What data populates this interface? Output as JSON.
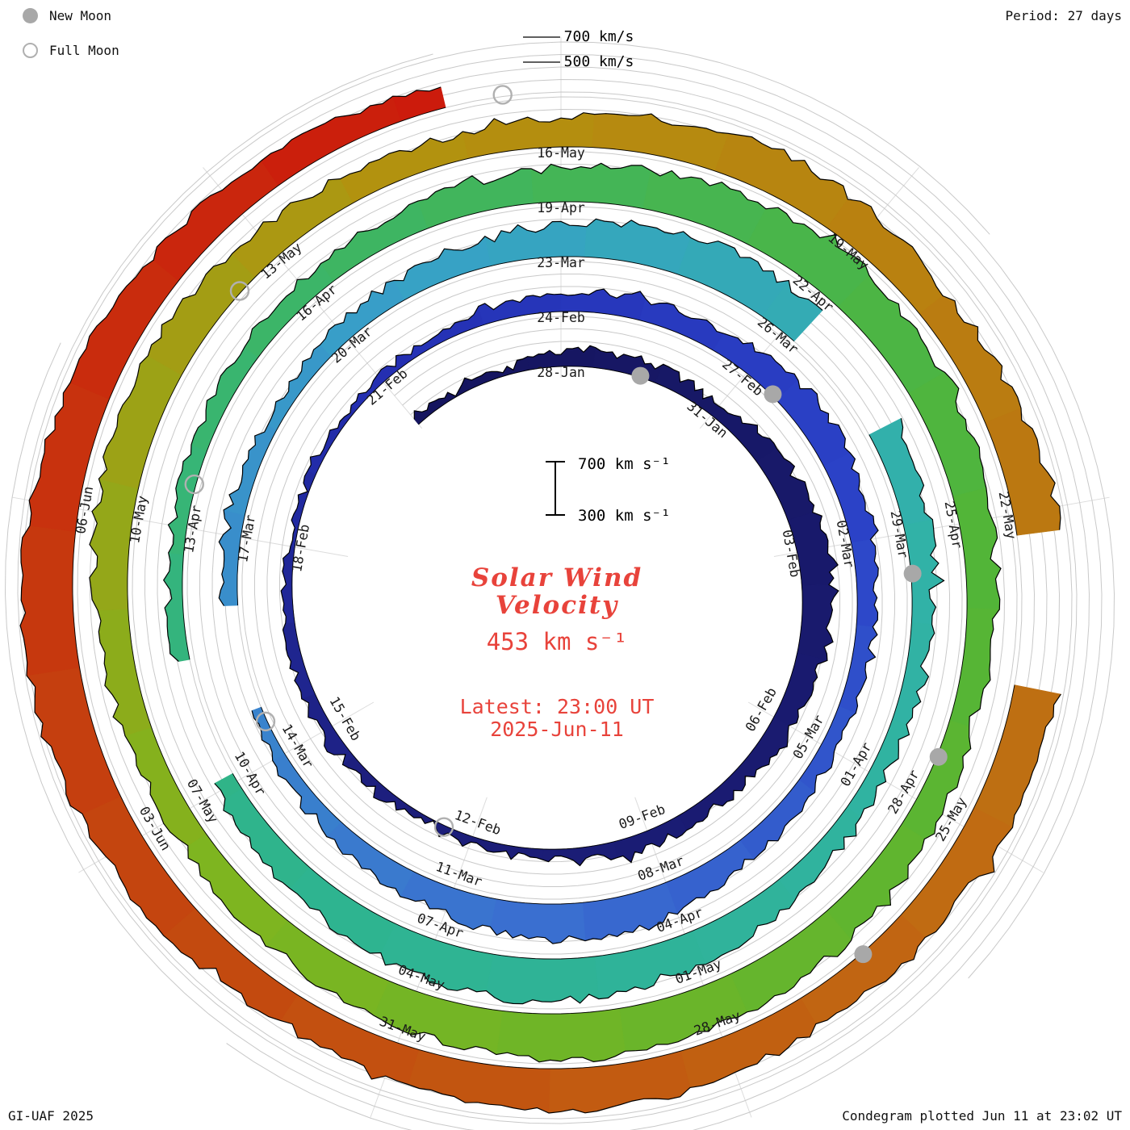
{
  "header": {
    "period_label": "Period: 27 days"
  },
  "legend": {
    "new_moon": "New Moon",
    "full_moon": "Full Moon"
  },
  "footer": {
    "credit": "GI-UAF 2025",
    "plotted": "Condegram plotted Jun 11 at 23:02 UT"
  },
  "center": {
    "title_line1": "Solar Wind",
    "title_line2": "Velocity",
    "current_value": "453 km s⁻¹",
    "latest_line1": "Latest: 23:00 UT",
    "latest_line2": "2025-Jun-11",
    "scale_top": "700 km s⁻¹",
    "scale_bottom": "300 km s⁻¹",
    "accent_color": "#e8433b"
  },
  "outer_scale": {
    "label_700": "700 km/s",
    "label_500": "500 km/s"
  },
  "chart_data": {
    "type": "area",
    "subtype": "spiral_condegram",
    "title": "Solar Wind Velocity",
    "period_days": 27,
    "direction": "clockwise",
    "start_angle": "top",
    "radial_axis": {
      "min": 300,
      "max": 700,
      "units": "km/s",
      "gridlines_km_s": [
        300,
        400,
        500,
        600,
        700
      ]
    },
    "latest": {
      "value_km_s": 453,
      "time_ut": "23:00",
      "date": "2025-Jun-11"
    },
    "date_labels": [
      {
        "day": 0,
        "label": "28-Jan"
      },
      {
        "day": 3,
        "label": "31-Jan"
      },
      {
        "day": 6,
        "label": "03-Feb"
      },
      {
        "day": 9,
        "label": "06-Feb"
      },
      {
        "day": 12,
        "label": "09-Feb"
      },
      {
        "day": 15,
        "label": "12-Feb"
      },
      {
        "day": 18,
        "label": "15-Feb"
      },
      {
        "day": 21,
        "label": "18-Feb"
      },
      {
        "day": 24,
        "label": "21-Feb"
      },
      {
        "day": 27,
        "label": "24-Feb"
      },
      {
        "day": 30,
        "label": "27-Feb"
      },
      {
        "day": 33,
        "label": "02-Mar"
      },
      {
        "day": 36,
        "label": "05-Mar"
      },
      {
        "day": 39,
        "label": "08-Mar"
      },
      {
        "day": 42,
        "label": "11-Mar"
      },
      {
        "day": 45,
        "label": "14-Mar"
      },
      {
        "day": 48,
        "label": "17-Mar"
      },
      {
        "day": 51,
        "label": "20-Mar"
      },
      {
        "day": 54,
        "label": "23-Mar"
      },
      {
        "day": 57,
        "label": "26-Mar"
      },
      {
        "day": 60,
        "label": "29-Mar"
      },
      {
        "day": 63,
        "label": "01-Apr"
      },
      {
        "day": 66,
        "label": "04-Apr"
      },
      {
        "day": 69,
        "label": "07-Apr"
      },
      {
        "day": 72,
        "label": "10-Apr"
      },
      {
        "day": 75,
        "label": "13-Apr"
      },
      {
        "day": 78,
        "label": "16-Apr"
      },
      {
        "day": 81,
        "label": "19-Apr"
      },
      {
        "day": 84,
        "label": "22-Apr"
      },
      {
        "day": 87,
        "label": "25-Apr"
      },
      {
        "day": 90,
        "label": "28-Apr"
      },
      {
        "day": 93,
        "label": "01-May"
      },
      {
        "day": 96,
        "label": "04-May"
      },
      {
        "day": 99,
        "label": "07-May"
      },
      {
        "day": 102,
        "label": "10-May"
      },
      {
        "day": 105,
        "label": "13-May"
      },
      {
        "day": 108,
        "label": "16-May"
      },
      {
        "day": 111,
        "label": "19-May"
      },
      {
        "day": 114,
        "label": "22-May"
      },
      {
        "day": 117,
        "label": "25-May"
      },
      {
        "day": 120,
        "label": "28-May"
      },
      {
        "day": 123,
        "label": "31-May"
      },
      {
        "day": 126,
        "label": "03-Jun"
      },
      {
        "day": 129,
        "label": "06-Jun"
      }
    ],
    "velocity_start_day": -3,
    "velocity_km_s": [
      380,
      360,
      350,
      420,
      450,
      430,
      400,
      480,
      520,
      560,
      540,
      500,
      470,
      440,
      410,
      430,
      400,
      380,
      370,
      360,
      380,
      400,
      390,
      370,
      360,
      350,
      340,
      360,
      380,
      420,
      450,
      480,
      460,
      500,
      540,
      520,
      480,
      450,
      430,
      420,
      440,
      480,
      560,
      600,
      570,
      520,
      470,
      430,
      400,
      390,
      420,
      440,
      420,
      400,
      430,
      470,
      520,
      560,
      600,
      640,
      620,
      580,
      540,
      500,
      470,
      450,
      430,
      460,
      520,
      580,
      620,
      650,
      610,
      560,
      510,
      470,
      440,
      420,
      410,
      430,
      450,
      470,
      500,
      540,
      580,
      620,
      650,
      670,
      640,
      600,
      560,
      520,
      490,
      530,
      570,
      610,
      650,
      680,
      650,
      610,
      570,
      530,
      500,
      520,
      560,
      600,
      630,
      600,
      560,
      520,
      490,
      540,
      600,
      640,
      610,
      570,
      600,
      650,
      680,
      650,
      610,
      580,
      560,
      600,
      640,
      620,
      580,
      560,
      600,
      650,
      690,
      710,
      680,
      640,
      600,
      560,
      510,
      453
    ],
    "gaps": [
      {
        "start_day": 45.8,
        "end_day": 47.0
      },
      {
        "start_day": 57.3,
        "end_day": 58.6
      },
      {
        "start_day": 72.2,
        "end_day": 73.4
      },
      {
        "start_day": 114.3,
        "end_day": 115.6
      }
    ],
    "moon_events": [
      {
        "type": "new",
        "date": "29-Jan",
        "day": 1
      },
      {
        "type": "new",
        "date": "27-Feb",
        "day": 30
      },
      {
        "type": "new",
        "date": "29-Mar",
        "day": 60
      },
      {
        "type": "new",
        "date": "27-Apr",
        "day": 89
      },
      {
        "type": "new",
        "date": "26-May",
        "day": 118
      },
      {
        "type": "full",
        "date": "12-Feb",
        "day": 15
      },
      {
        "type": "full",
        "date": "14-Mar",
        "day": 45
      },
      {
        "type": "full",
        "date": "13-Apr",
        "day": 75
      },
      {
        "type": "full",
        "date": "12-May",
        "day": 104
      },
      {
        "type": "full",
        "date": "11-Jun",
        "day": 134
      }
    ],
    "palette": [
      {
        "at": 0.0,
        "color": "#15155e"
      },
      {
        "at": 0.14,
        "color": "#1c1e7a"
      },
      {
        "at": 0.2,
        "color": "#2430b4"
      },
      {
        "at": 0.26,
        "color": "#2b43c8"
      },
      {
        "at": 0.32,
        "color": "#3a6fd0"
      },
      {
        "at": 0.4,
        "color": "#38a0c8"
      },
      {
        "at": 0.46,
        "color": "#31b2a8"
      },
      {
        "at": 0.54,
        "color": "#2eb48e"
      },
      {
        "at": 0.6,
        "color": "#3fb560"
      },
      {
        "at": 0.66,
        "color": "#52b537"
      },
      {
        "at": 0.74,
        "color": "#7fb51f"
      },
      {
        "at": 0.8,
        "color": "#b3920f"
      },
      {
        "at": 0.88,
        "color": "#c06a12"
      },
      {
        "at": 0.94,
        "color": "#c4450f"
      },
      {
        "at": 1.0,
        "color": "#cc1a0c"
      }
    ]
  }
}
